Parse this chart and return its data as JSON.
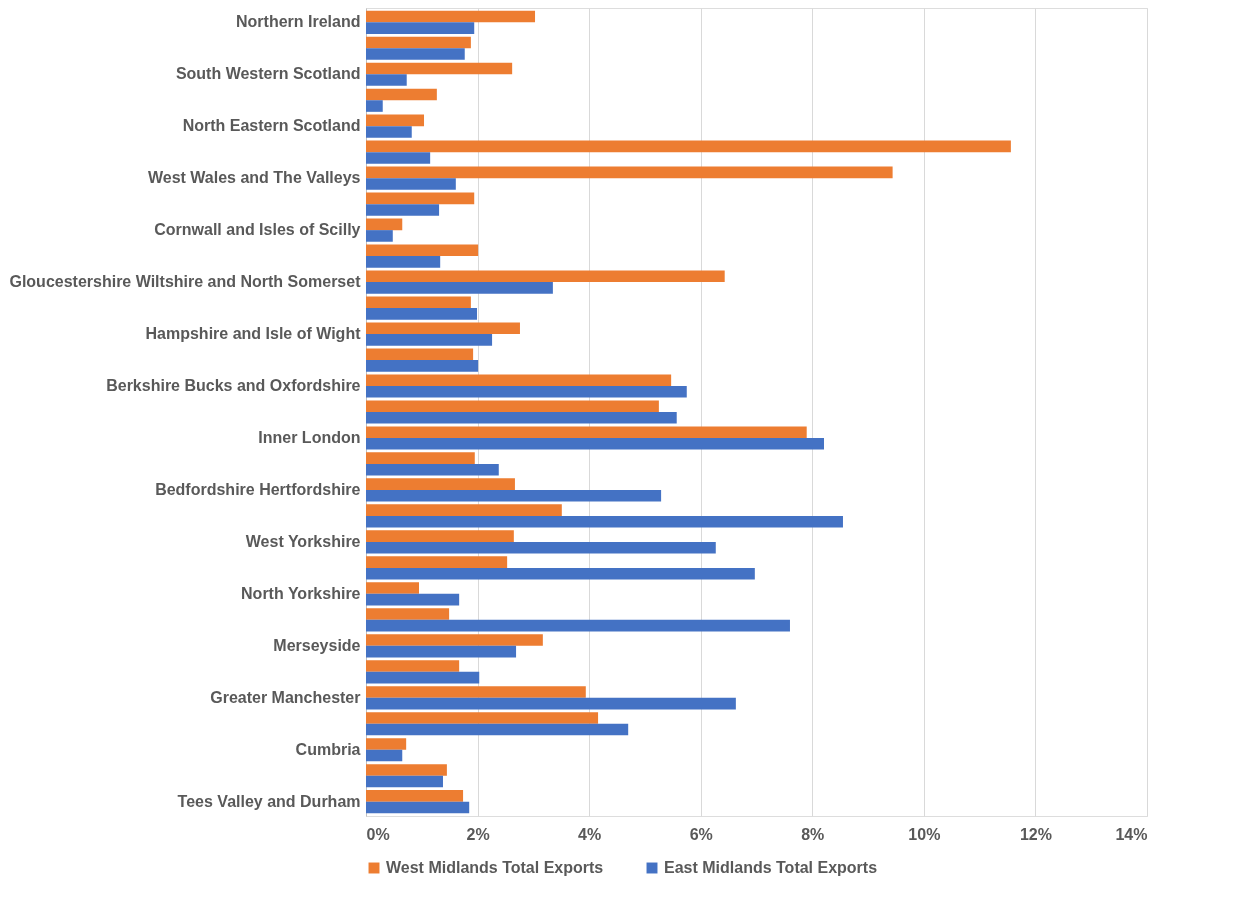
{
  "chart_data": {
    "type": "bar",
    "orientation": "horizontal",
    "categories": [
      "Northern Ireland",
      null,
      "South Western Scotland",
      null,
      "North Eastern Scotland",
      null,
      "West Wales and The Valleys",
      null,
      "Cornwall and Isles of Scilly",
      null,
      "Gloucestershire Wiltshire and North Somerset",
      null,
      "Hampshire and Isle of Wight",
      null,
      "Berkshire Bucks and Oxfordshire",
      null,
      "Inner London",
      null,
      "Bedfordshire Hertfordshire",
      null,
      "West Yorkshire",
      null,
      "North Yorkshire",
      null,
      "Merseyside",
      null,
      "Greater Manchester",
      null,
      "Cumbria",
      null,
      "Tees Valley and Durham"
    ],
    "series": [
      {
        "name": "West Midlands Total Exports",
        "color": "#ed7d31",
        "values": [
          3.03,
          1.88,
          2.62,
          1.27,
          1.04,
          11.56,
          9.44,
          1.94,
          0.65,
          2.01,
          6.43,
          1.88,
          2.76,
          1.92,
          5.47,
          5.25,
          7.9,
          1.95,
          2.67,
          3.51,
          2.65,
          2.53,
          0.95,
          1.49,
          3.17,
          1.67,
          3.94,
          4.16,
          0.72,
          1.45,
          1.74
        ]
      },
      {
        "name": "East Midlands Total Exports",
        "color": "#4472c4",
        "values": [
          1.94,
          1.77,
          0.73,
          0.3,
          0.82,
          1.15,
          1.61,
          1.31,
          0.48,
          1.33,
          3.35,
          1.99,
          2.26,
          2.01,
          5.75,
          5.57,
          8.21,
          2.38,
          5.29,
          8.55,
          6.27,
          6.97,
          1.67,
          7.6,
          2.69,
          2.03,
          6.63,
          4.7,
          0.65,
          1.38,
          1.85
        ]
      }
    ],
    "xlim": [
      0,
      14
    ],
    "xticks": [
      {
        "value": 0,
        "label": "0%"
      },
      {
        "value": 2,
        "label": "2%"
      },
      {
        "value": 4,
        "label": "4%"
      },
      {
        "value": 6,
        "label": "6%"
      },
      {
        "value": 8,
        "label": "8%"
      },
      {
        "value": 10,
        "label": "10%"
      },
      {
        "value": 12,
        "label": "12%"
      },
      {
        "value": 14,
        "label": "14%"
      }
    ],
    "grid": "x",
    "legend": "bottom"
  }
}
